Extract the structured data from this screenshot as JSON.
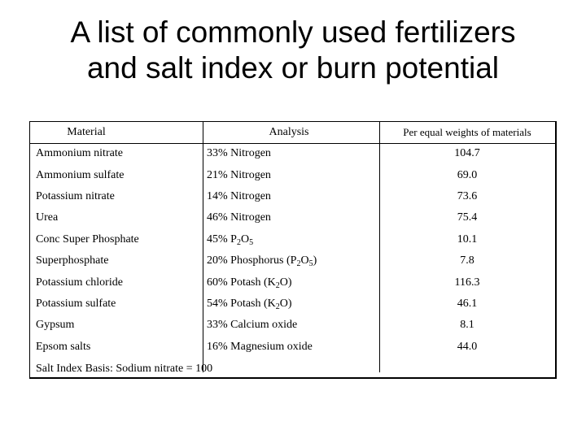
{
  "title": {
    "line1": "A list of commonly used fertilizers",
    "line2": "and salt index or burn potential"
  },
  "table": {
    "headers": {
      "material": "Material",
      "analysis": "Analysis",
      "per_equal": "Per equal weights of materials"
    },
    "rows": [
      {
        "material": "Ammonium nitrate",
        "analysis": "33% Nitrogen",
        "value": "104.7"
      },
      {
        "material": "Ammonium sulfate",
        "analysis": "21% Nitrogen",
        "value": "69.0"
      },
      {
        "material": "Potassium nitrate",
        "analysis": "14% Nitrogen",
        "value": "73.6"
      },
      {
        "material": "Urea",
        "analysis": "46% Nitrogen",
        "value": "75.4"
      },
      {
        "material": "Conc Super Phosphate",
        "analysis": "45% P",
        "analysis_sub1": "2",
        "analysis_mid": "O",
        "analysis_sub2": "5",
        "value": "10.1"
      },
      {
        "material": "Superphosphate",
        "analysis": "20% Phosphorus (P",
        "analysis_sub1": "2",
        "analysis_mid": "O",
        "analysis_sub2": "5",
        "analysis_end": ")",
        "value": "7.8"
      },
      {
        "material": "Potassium chloride",
        "analysis": "60% Potash (K",
        "analysis_sub1": "2",
        "analysis_mid": "O)",
        "value": "116.3"
      },
      {
        "material": "Potassium sulfate",
        "analysis": "54% Potash (K",
        "analysis_sub1": "2",
        "analysis_mid": "O)",
        "value": "46.1"
      },
      {
        "material": "Gypsum",
        "analysis": "33% Calcium oxide",
        "value": "8.1"
      },
      {
        "material": "Epsom salts",
        "analysis": "16% Magnesium oxide",
        "value": "44.0"
      }
    ],
    "footnote": "Salt Index Basis: Sodium nitrate = 100"
  }
}
